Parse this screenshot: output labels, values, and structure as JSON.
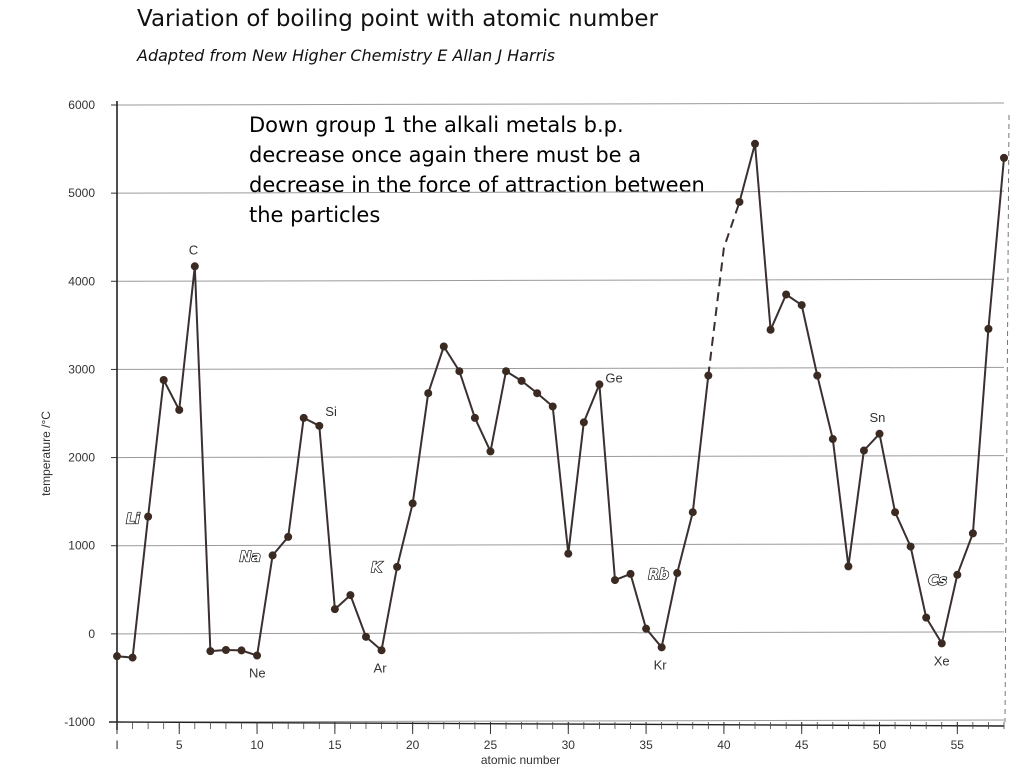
{
  "title": "Variation of boiling point with atomic number",
  "subtitle": "Adapted from New Higher Chemistry E Allan J Harris",
  "annotation": "Down group 1 the alkali metals b.p. decrease once again there must be a decrease in the force of attraction between the particles",
  "chart_data": {
    "type": "line",
    "xlabel": "atomic number",
    "ylabel": "temperature /°C",
    "xlim": [
      1,
      58
    ],
    "ylim": [
      -1000,
      6000
    ],
    "x_ticks": [
      1,
      5,
      10,
      15,
      20,
      25,
      30,
      35,
      40,
      45,
      50,
      55
    ],
    "x_tick_labels": [
      "I",
      "5",
      "10",
      "15",
      "20",
      "25",
      "30",
      "35",
      "40",
      "45",
      "50",
      "55"
    ],
    "y_ticks": [
      -1000,
      0,
      1000,
      2000,
      3000,
      4000,
      5000,
      6000
    ],
    "grid": true,
    "series": [
      {
        "style": "solid",
        "points": [
          [
            1,
            -253
          ],
          [
            2,
            -269
          ],
          [
            3,
            1330
          ],
          [
            4,
            2880
          ],
          [
            5,
            2540
          ],
          [
            6,
            4170
          ],
          [
            7,
            -196
          ],
          [
            8,
            -183
          ],
          [
            9,
            -188
          ],
          [
            10,
            -246
          ],
          [
            11,
            890
          ],
          [
            12,
            1100
          ],
          [
            13,
            2450
          ],
          [
            14,
            2360
          ],
          [
            15,
            280
          ],
          [
            16,
            440
          ],
          [
            17,
            -34
          ],
          [
            18,
            -186
          ],
          [
            19,
            760
          ],
          [
            20,
            1480
          ],
          [
            21,
            2730
          ],
          [
            22,
            3260
          ],
          [
            23,
            2980
          ],
          [
            24,
            2450
          ],
          [
            25,
            2070
          ],
          [
            26,
            2980
          ],
          [
            27,
            2870
          ],
          [
            28,
            2730
          ],
          [
            29,
            2580
          ],
          [
            30,
            910
          ],
          [
            31,
            2400
          ],
          [
            32,
            2830
          ],
          [
            33,
            610
          ],
          [
            34,
            680
          ],
          [
            35,
            59
          ],
          [
            36,
            -153
          ],
          [
            37,
            690
          ],
          [
            38,
            1380
          ],
          [
            39,
            2930
          ]
        ]
      },
      {
        "style": "dashed",
        "points": [
          [
            39,
            2930
          ],
          [
            40,
            4380
          ],
          [
            41,
            4900
          ]
        ]
      },
      {
        "style": "solid",
        "points": [
          [
            41,
            4900
          ],
          [
            42,
            5560
          ],
          [
            43,
            3450
          ],
          [
            44,
            3850
          ],
          [
            45,
            3730
          ],
          [
            46,
            2930
          ],
          [
            47,
            2210
          ],
          [
            48,
            765
          ],
          [
            49,
            2080
          ],
          [
            50,
            2270
          ],
          [
            51,
            1380
          ],
          [
            52,
            990
          ],
          [
            53,
            184
          ],
          [
            54,
            -108
          ],
          [
            55,
            670
          ],
          [
            56,
            1140
          ],
          [
            57,
            3460
          ],
          [
            58,
            5400
          ]
        ]
      }
    ],
    "annotations": [
      {
        "label": "Li",
        "x": 3,
        "emphasis": true
      },
      {
        "label": "C",
        "x": 6,
        "emphasis": false
      },
      {
        "label": "Na",
        "x": 11,
        "emphasis": true
      },
      {
        "label": "Ne",
        "x": 10,
        "emphasis": false
      },
      {
        "label": "Si",
        "x": 14,
        "emphasis": false
      },
      {
        "label": "K",
        "x": 19,
        "emphasis": true
      },
      {
        "label": "Ar",
        "x": 18,
        "emphasis": false
      },
      {
        "label": "Ge",
        "x": 32,
        "emphasis": false
      },
      {
        "label": "Rb",
        "x": 37,
        "emphasis": true
      },
      {
        "label": "Kr",
        "x": 36,
        "emphasis": false
      },
      {
        "label": "Sn",
        "x": 50,
        "emphasis": false
      },
      {
        "label": "Cs",
        "x": 55,
        "emphasis": true
      },
      {
        "label": "Xe",
        "x": 54,
        "emphasis": false
      }
    ]
  }
}
